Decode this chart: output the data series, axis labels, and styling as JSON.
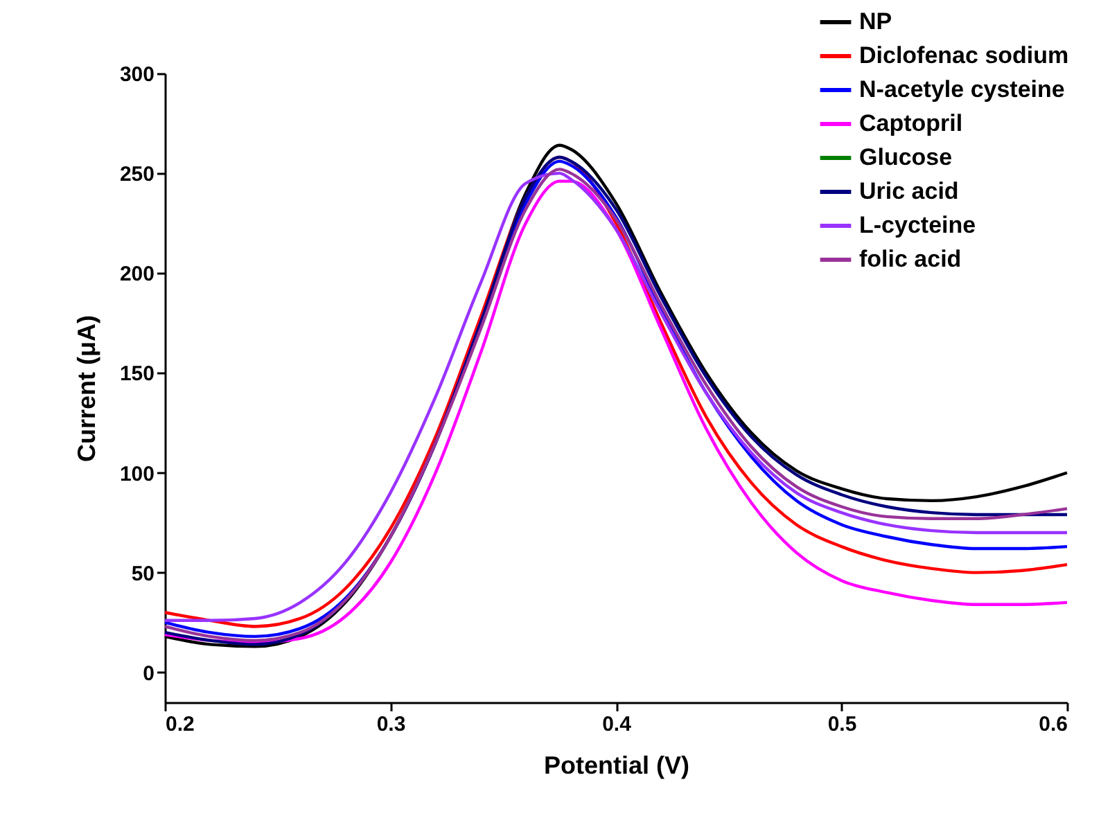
{
  "chart_data": {
    "type": "line",
    "xlabel": "Potential (V)",
    "ylabel": "Current (μA)",
    "x": [
      0.2,
      0.22,
      0.24,
      0.26,
      0.28,
      0.3,
      0.32,
      0.34,
      0.36,
      0.375,
      0.38,
      0.4,
      0.42,
      0.44,
      0.46,
      0.48,
      0.5,
      0.52,
      0.54,
      0.56,
      0.58,
      0.6
    ],
    "series": [
      {
        "name": "NP",
        "color": "#000000",
        "values": [
          18,
          14,
          13,
          18,
          35,
          68,
          115,
          175,
          240,
          264,
          262,
          235,
          190,
          150,
          120,
          101,
          92,
          87,
          86,
          88,
          93,
          100
        ]
      },
      {
        "name": "Diclofenac sodium",
        "color": "#ff0000",
        "values": [
          30,
          26,
          23,
          27,
          42,
          72,
          118,
          178,
          238,
          258,
          256,
          225,
          175,
          128,
          95,
          74,
          63,
          56,
          52,
          50,
          51,
          54
        ]
      },
      {
        "name": "N-acetyle cysteine",
        "color": "#0000ff",
        "values": [
          25,
          20,
          18,
          22,
          37,
          68,
          115,
          175,
          235,
          256,
          254,
          228,
          182,
          140,
          108,
          86,
          74,
          68,
          64,
          62,
          62,
          63
        ]
      },
      {
        "name": "Captopril",
        "color": "#ff00ff",
        "values": [
          19,
          16,
          15,
          17,
          28,
          55,
          100,
          160,
          225,
          246,
          246,
          222,
          172,
          122,
          85,
          60,
          46,
          40,
          36,
          34,
          34,
          35
        ]
      },
      {
        "name": "Glucose",
        "color": "#008000",
        "values": [
          null,
          null,
          null,
          null,
          null,
          null,
          null,
          null,
          null,
          null,
          null,
          null,
          null,
          null,
          null,
          null,
          null,
          null,
          null,
          null,
          null,
          null
        ]
      },
      {
        "name": "Uric acid",
        "color": "#000080",
        "values": [
          20,
          16,
          14,
          19,
          36,
          68,
          115,
          175,
          238,
          258,
          256,
          232,
          188,
          148,
          118,
          99,
          89,
          83,
          80,
          79,
          79,
          79
        ]
      },
      {
        "name": "L-cycteine",
        "color": "#9933ff",
        "values": [
          26,
          26,
          27,
          35,
          55,
          90,
          138,
          195,
          245,
          250,
          247,
          222,
          180,
          140,
          110,
          90,
          80,
          74,
          71,
          70,
          70,
          70
        ]
      },
      {
        "name": "folic acid",
        "color": "#993399",
        "values": [
          23,
          18,
          16,
          20,
          36,
          68,
          115,
          172,
          232,
          252,
          250,
          227,
          184,
          144,
          113,
          93,
          83,
          78,
          77,
          77,
          79,
          82
        ]
      }
    ],
    "xlim": [
      0.2,
      0.6
    ],
    "xticks": [
      0.2,
      0.3,
      0.4,
      0.5,
      0.6
    ],
    "ylim": [
      -15,
      300
    ],
    "yticks": [
      0,
      50,
      100,
      150,
      200,
      250,
      300
    ],
    "legend": "top right",
    "grid": false
  }
}
